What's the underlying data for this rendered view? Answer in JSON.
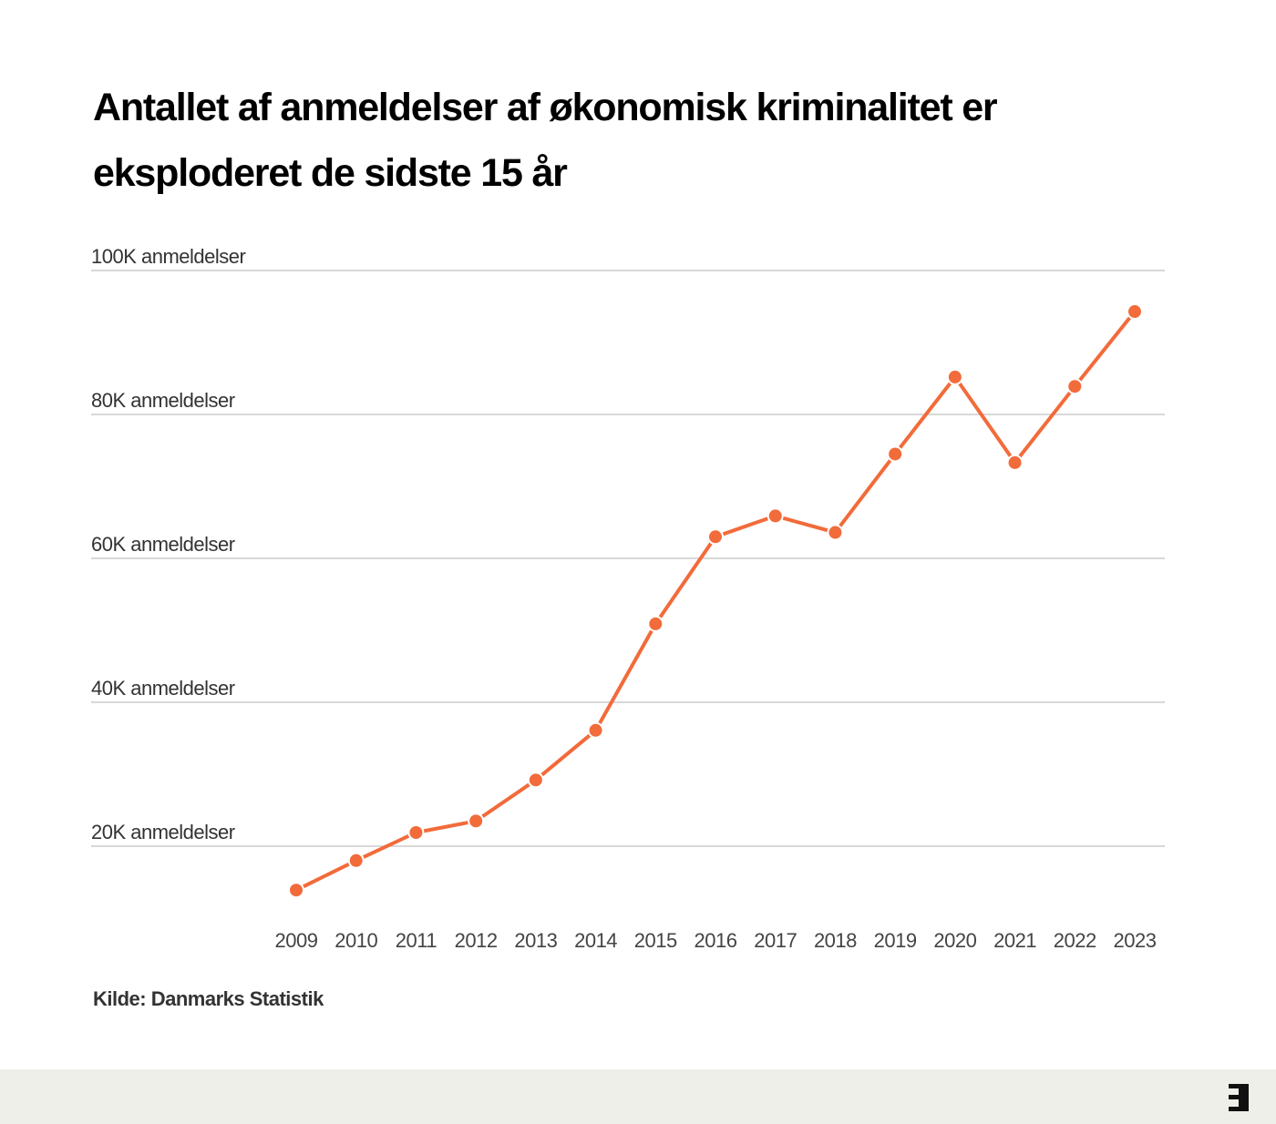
{
  "title": "Antallet af anmeldelser af økonomisk kriminalitet er eksploderet de sidste 15 år",
  "source": "Kilde: Danmarks Statistik",
  "logo_icon": "brand-logo-icon",
  "colors": {
    "line": "#f26b3a",
    "grid": "#cccccc",
    "footer": "#efefea"
  },
  "chart_data": {
    "type": "line",
    "x": [
      "2009",
      "2010",
      "2011",
      "2012",
      "2013",
      "2014",
      "2015",
      "2016",
      "2017",
      "2018",
      "2019",
      "2020",
      "2021",
      "2022",
      "2023"
    ],
    "series": [
      {
        "values": [
          13900,
          18000,
          21900,
          23500,
          29200,
          36100,
          50900,
          63000,
          65900,
          63600,
          74500,
          85200,
          73300,
          83900,
          94300
        ]
      }
    ],
    "ylim": [
      10000,
      100000
    ],
    "yticks": [
      20000,
      40000,
      60000,
      80000,
      100000
    ],
    "ytick_labels": [
      "20K anmeldelser",
      "40K anmeldelser",
      "60K anmeldelser",
      "80K anmeldelser",
      "100K anmeldelser"
    ],
    "grid": true,
    "legend": "none"
  }
}
